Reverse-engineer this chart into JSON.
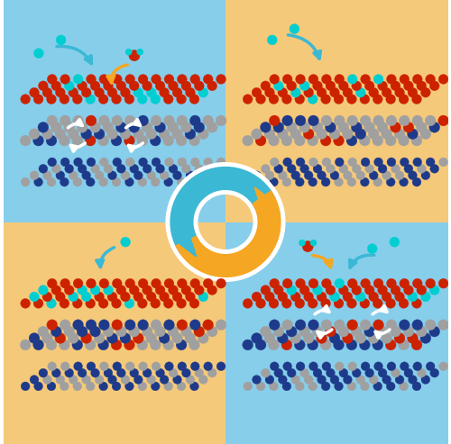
{
  "fig_width": 5.0,
  "fig_height": 4.93,
  "dpi": 100,
  "bg_colors": {
    "top_left": "#87CEEB",
    "top_right": "#F5C97A",
    "bottom_left": "#F5C97A",
    "bottom_right": "#87CEEB"
  },
  "blue_arrow_color": "#3BB8D4",
  "orange_arrow_color": "#F5A623",
  "white_outline": "#FFFFFF",
  "atom_red": "#CC2200",
  "atom_gray": "#A0A0A0",
  "atom_blue": "#1E3A8A",
  "atom_cyan": "#00CED1"
}
